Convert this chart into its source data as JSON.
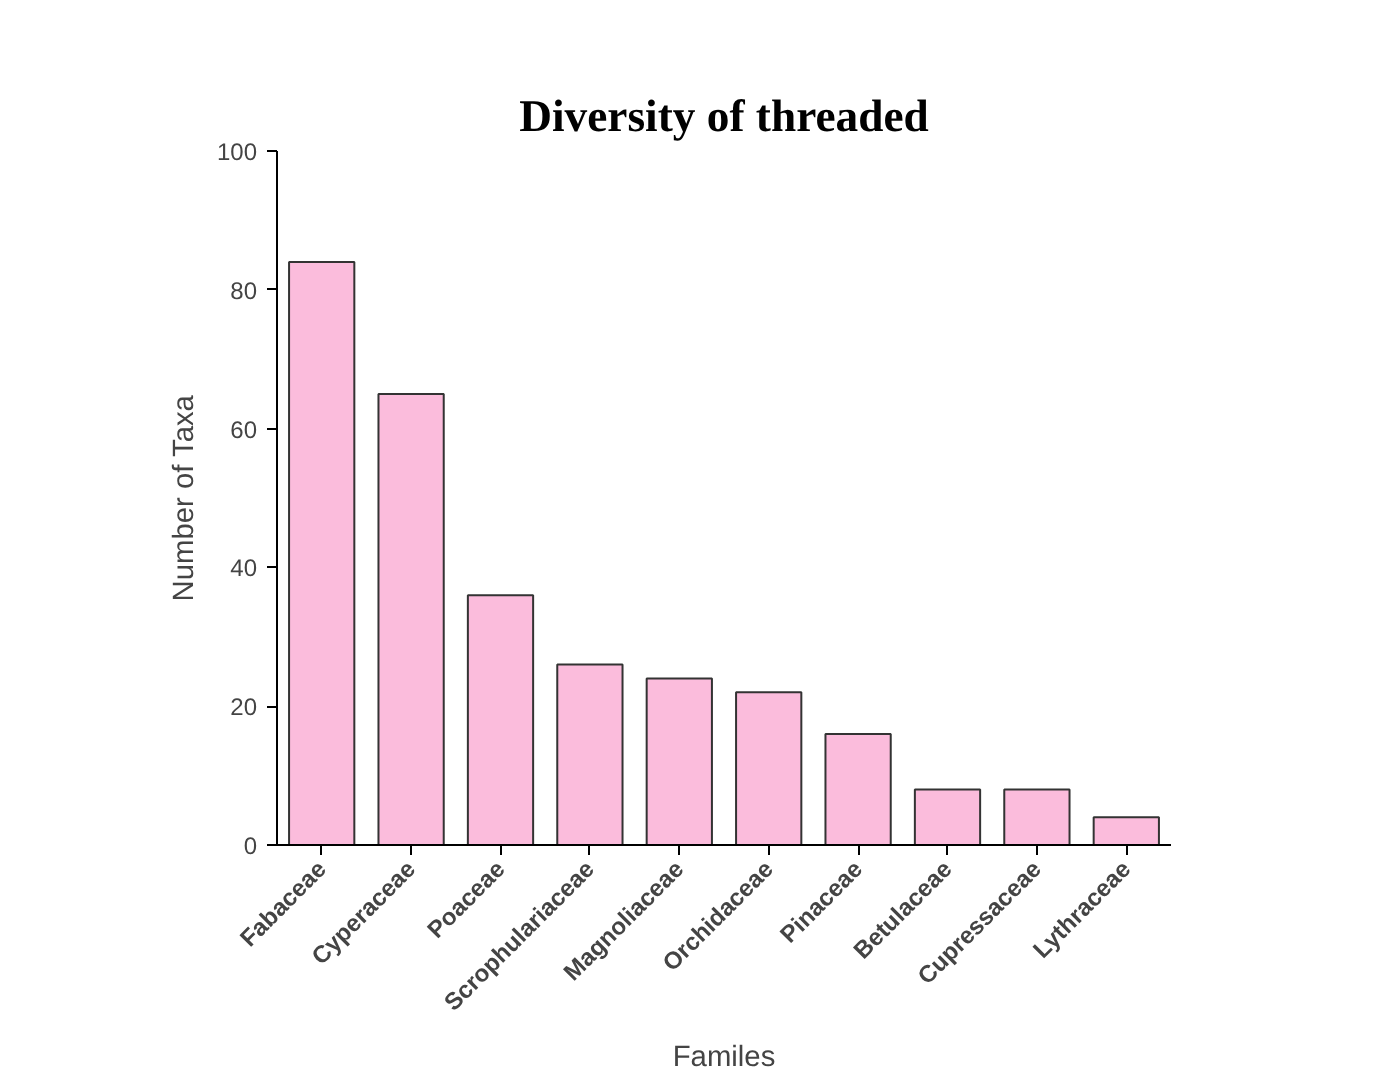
{
  "chart_data": {
    "type": "bar",
    "title": "Diversity of threaded",
    "xlabel": "Familes",
    "ylabel": "Number of Taxa",
    "categories": [
      "Fabaceae",
      "Cyperaceae",
      "Poaceae",
      "Scrophulariaceae",
      "Magnoliaceae",
      "Orchidaceae",
      "Pinaceae",
      "Betulaceae",
      "Cupressaceae",
      "Lythraceae"
    ],
    "values": [
      84,
      65,
      36,
      26,
      24,
      22,
      16,
      8,
      8,
      4
    ],
    "color": "#fbbcdc",
    "ylim": [
      0,
      100
    ],
    "yticks": [
      0,
      20,
      40,
      60,
      80,
      100
    ],
    "grid": false,
    "legend": false
  }
}
